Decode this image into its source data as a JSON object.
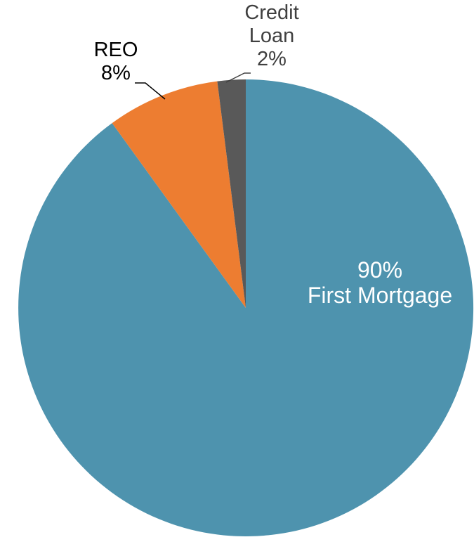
{
  "chart_data": {
    "type": "pie",
    "title": "",
    "legend_position": "none",
    "background_color": "#FFFFFF",
    "start_angle_deg": 0,
    "direction": "clockwise",
    "slices": [
      {
        "name": "First Mortgage",
        "value_pct": 90,
        "color": "#4E93AE",
        "label_text": "90% First Mortgage",
        "label_placement": "inside",
        "label_color": "#FFFFFF"
      },
      {
        "name": "REO",
        "value_pct": 8,
        "color": "#ED7D31",
        "label_text": "REO 8%",
        "label_placement": "outside",
        "label_color": "#000000",
        "leader_line_color": "#000000"
      },
      {
        "name": "Credit Loan",
        "value_pct": 2,
        "color": "#595959",
        "label_text": "Credit Loan 2%",
        "label_placement": "outside",
        "label_color": "#404040",
        "leader_line_color": "#404040"
      }
    ]
  },
  "labels": {
    "first_mortgage": {
      "line1": "90%",
      "line2": "First Mortgage"
    },
    "reo": {
      "line1": "REO",
      "line2": "8%"
    },
    "credit_loan": {
      "line1": "Credit",
      "line2": "Loan",
      "line3": "2%"
    }
  }
}
